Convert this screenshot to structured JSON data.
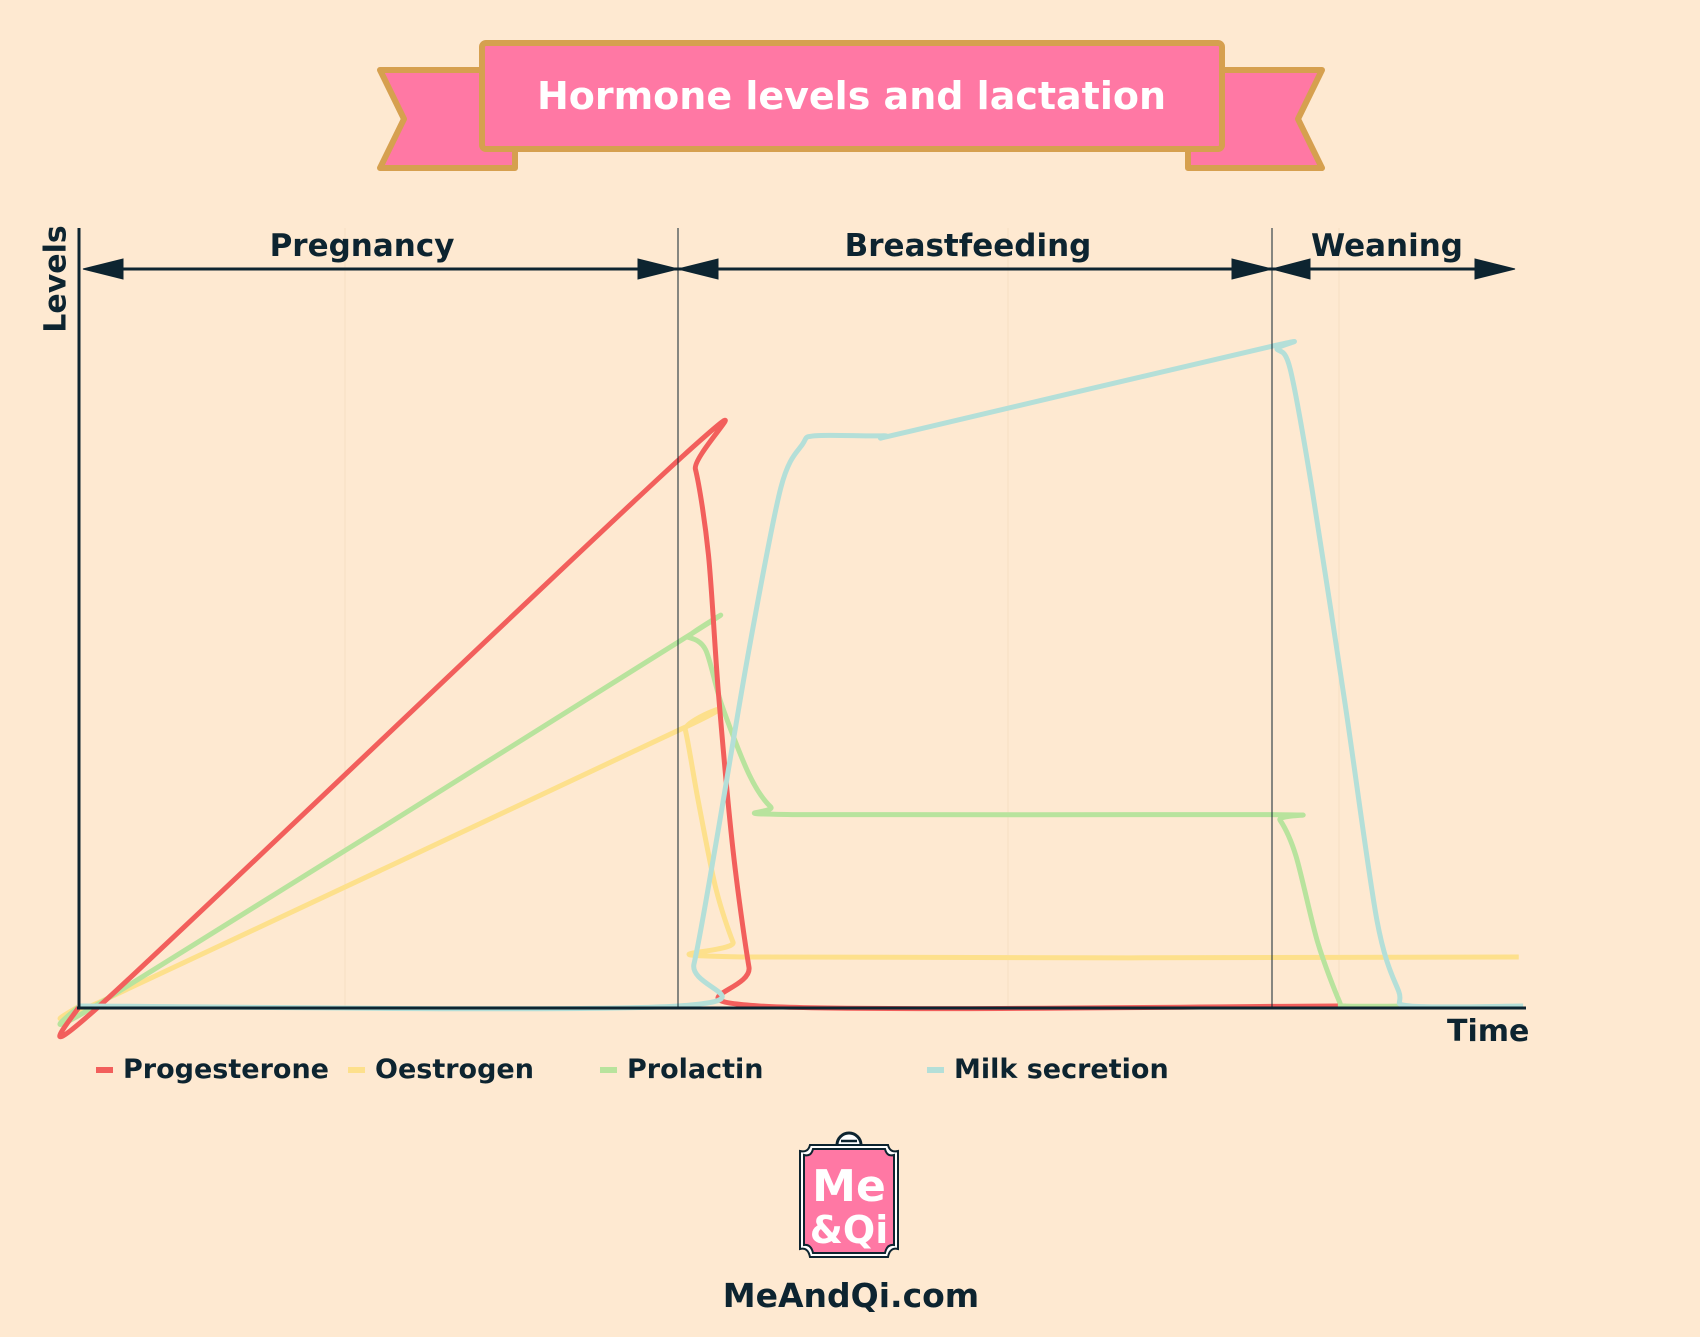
{
  "title": "Hormone levels and lactation",
  "colors": {
    "background": "#fee9d1",
    "banner": "#ff78a4",
    "banner_border": "#d6a04f",
    "axis": "#0d2430"
  },
  "chart_data": {
    "type": "line",
    "title": "Hormone levels and lactation",
    "xlabel": "Time",
    "ylabel": "Levels",
    "xlim": [
      0,
      100
    ],
    "ylim": [
      0,
      100
    ],
    "grid": false,
    "legend_position": "bottom",
    "phases": [
      {
        "label": "Pregnancy",
        "start": 0,
        "end": 41.5
      },
      {
        "label": "Breastfeeding",
        "start": 41.5,
        "end": 82.5
      },
      {
        "label": "Weaning",
        "start": 82.5,
        "end": 99
      }
    ],
    "series": [
      {
        "name": "Progesterone",
        "color": "#f25f5c",
        "x": [
          0,
          2,
          41.8,
          42.6,
          43.5,
          44.2,
          45.2,
          46.3,
          47,
          87
        ],
        "y": [
          0,
          1,
          70.8,
          69,
          58,
          40,
          20,
          5,
          0,
          0
        ]
      },
      {
        "name": "Oestrogen",
        "color": "#fde08c",
        "x": [
          0,
          2,
          41.5,
          41.9,
          42.8,
          44,
          45.2,
          45.9,
          99.5
        ],
        "y": [
          0,
          1,
          35.5,
          35.5,
          26.3,
          15.2,
          8.2,
          6.3,
          6.3
        ]
      },
      {
        "name": "Prolactin",
        "color": "#b8e39d",
        "x": [
          0,
          2,
          41.6,
          42.1,
          43.3,
          44.4,
          46.3,
          47.8,
          49.3,
          82.2,
          83,
          84.1,
          85.6,
          87.1,
          87.5,
          92
        ],
        "y": [
          0,
          1,
          47,
          47.4,
          45.8,
          38.8,
          29.8,
          25.6,
          24.6,
          24.6,
          23.9,
          19.3,
          8.2,
          0.6,
          0,
          0
        ]
      },
      {
        "name": "Milk secretion",
        "color": "#b4dfd8",
        "x": [
          0,
          41.4,
          42.5,
          44,
          46.3,
          48.5,
          50,
          50.9,
          55.6,
          57.5,
          82.2,
          82.8,
          83.7,
          85.2,
          87.5,
          89.7,
          91.2,
          92,
          99.8
        ],
        "y": [
          0,
          0,
          5.4,
          20.7,
          45.8,
          66.6,
          72.2,
          73.3,
          73.3,
          73.9,
          84.7,
          84.4,
          81.9,
          66.6,
          38.8,
          11,
          1.9,
          0,
          0
        ]
      }
    ]
  },
  "logo": {
    "text_line1": "Me",
    "text_line2": "&Qi",
    "site": "MeAndQi.com"
  }
}
